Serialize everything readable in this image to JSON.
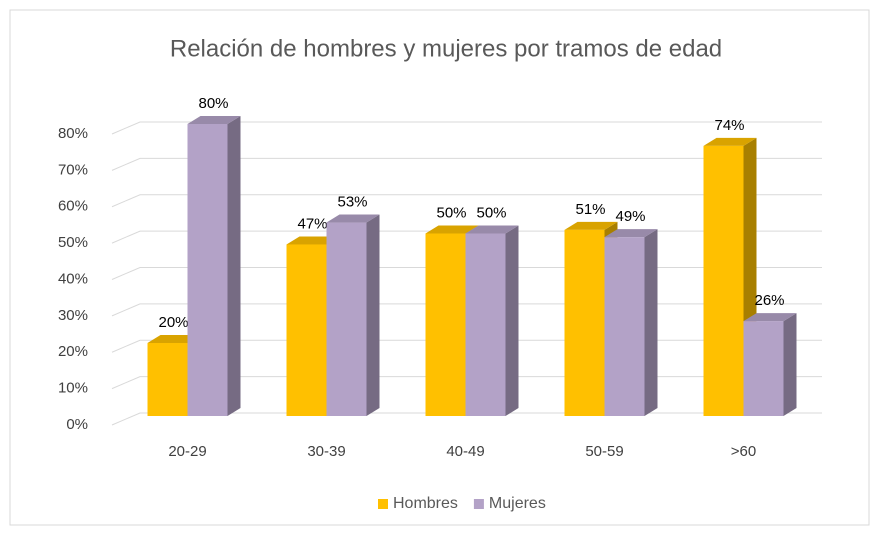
{
  "chart_data": {
    "type": "bar3d",
    "title": "Relación de hombres y mujeres por tramos de edad",
    "categories": [
      "20-29",
      "30-39",
      "40-49",
      "50-59",
      ">60"
    ],
    "series": [
      {
        "name": "Hombres",
        "color": "#FFC000",
        "values": [
          20,
          47,
          50,
          51,
          74
        ],
        "value_labels": [
          "20%",
          "47%",
          "50%",
          "51%",
          "74%"
        ]
      },
      {
        "name": "Mujeres",
        "color": "#B3A2C7",
        "values": [
          80,
          53,
          50,
          49,
          26
        ],
        "value_labels": [
          "80%",
          "53%",
          "50%",
          "49%",
          "26%"
        ]
      }
    ],
    "ylim": [
      0,
      80
    ],
    "yticks": [
      {
        "value": 0,
        "label": "0%"
      },
      {
        "value": 10,
        "label": "10%"
      },
      {
        "value": 20,
        "label": "20%"
      },
      {
        "value": 30,
        "label": "30%"
      },
      {
        "value": 40,
        "label": "40%"
      },
      {
        "value": 50,
        "label": "50%"
      },
      {
        "value": 60,
        "label": "60%"
      },
      {
        "value": 70,
        "label": "70%"
      },
      {
        "value": 80,
        "label": "80%"
      }
    ],
    "grid": true,
    "legend": "bottom"
  }
}
